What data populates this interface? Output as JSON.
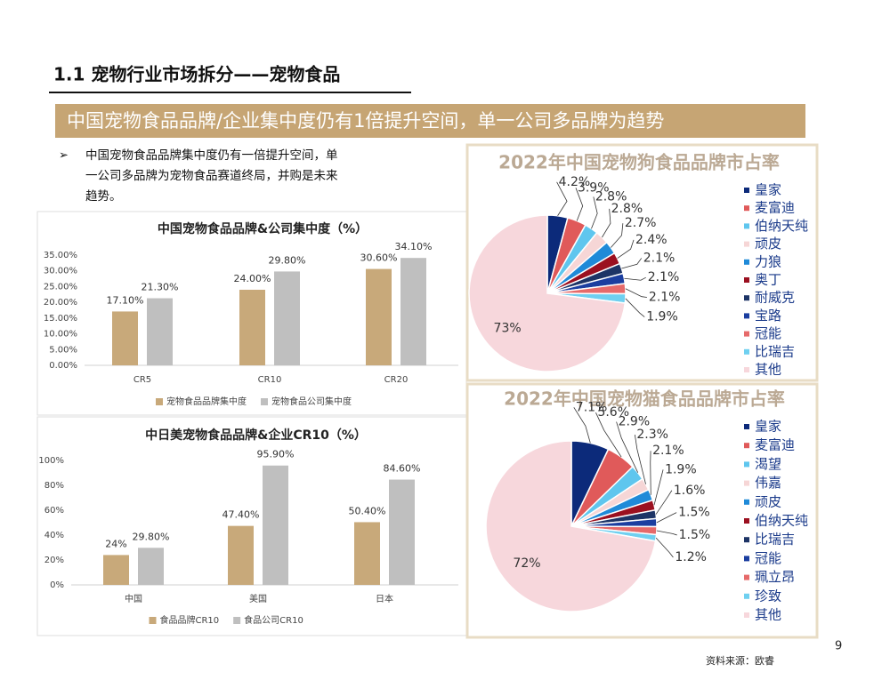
{
  "header": {
    "title": "1.1 宠物行业市场拆分——宠物食品"
  },
  "banner": "中国宠物食品品牌/企业集中度仍有1倍提升空间，单一公司多品牌为趋势",
  "bullet": [
    "中国宠物食品品牌集中度仍有一倍提升空间，单",
    "一公司多品牌为宠物食品赛道终局，并购是未来",
    "趋势。"
  ],
  "chart_data": [
    {
      "type": "bar",
      "title": "中国宠物食品品牌&公司集中度（%）",
      "categories": [
        "CR5",
        "CR10",
        "CR20"
      ],
      "series": [
        {
          "name": "宠物食品品牌集中度",
          "color": "#c8a97a",
          "values": [
            17.1,
            24.0,
            30.6
          ],
          "value_labels": [
            "17.10%",
            "24.00%",
            "30.60%"
          ]
        },
        {
          "name": "宠物食品公司集中度",
          "color": "#bfbfbf",
          "values": [
            21.3,
            29.8,
            34.1
          ],
          "value_labels": [
            "21.30%",
            "29.80%",
            "34.10%"
          ]
        }
      ],
      "ylim": [
        0,
        35
      ],
      "yticks": [
        {
          "value": 0,
          "label": "0.00%"
        },
        {
          "value": 5,
          "label": "5.00%"
        },
        {
          "value": 10,
          "label": "10.00%"
        },
        {
          "value": 15,
          "label": "15.00%"
        },
        {
          "value": 20,
          "label": "20.00%"
        },
        {
          "value": 25,
          "label": "25.00%"
        },
        {
          "value": 30,
          "label": "30.00%"
        },
        {
          "value": 35,
          "label": "35.00%"
        }
      ]
    },
    {
      "type": "bar",
      "title": "中日美宠物食品品牌&企业CR10（%）",
      "categories": [
        "中国",
        "美国",
        "日本"
      ],
      "series": [
        {
          "name": "食品品牌CR10",
          "color": "#c8a97a",
          "values": [
            24,
            47.4,
            50.4
          ],
          "value_labels": [
            "24%",
            "47.40%",
            "50.40%"
          ]
        },
        {
          "name": "食品公司CR10",
          "color": "#bfbfbf",
          "values": [
            29.8,
            95.9,
            84.6
          ],
          "value_labels": [
            "29.80%",
            "95.90%",
            "84.60%"
          ]
        }
      ],
      "ylim": [
        0,
        100
      ],
      "yticks": [
        {
          "value": 0,
          "label": "0%"
        },
        {
          "value": 20,
          "label": "20%"
        },
        {
          "value": 40,
          "label": "40%"
        },
        {
          "value": 60,
          "label": "60%"
        },
        {
          "value": 80,
          "label": "80%"
        },
        {
          "value": 100,
          "label": "100%"
        }
      ]
    },
    {
      "type": "pie",
      "title": "2022年中国宠物狗食品品牌市占率",
      "categories": [
        "皇家",
        "麦富迪",
        "伯纳天纯",
        "顽皮",
        "力狼",
        "奥丁",
        "耐威克",
        "宝路",
        "冠能",
        "比瑞吉",
        "其他"
      ],
      "values": [
        4.2,
        3.9,
        2.8,
        2.8,
        2.7,
        2.4,
        2.1,
        2.1,
        2.1,
        1.9,
        73
      ],
      "value_labels": [
        "4.2%",
        "3.9%",
        "2.8%",
        "2.8%",
        "2.7%",
        "2.4%",
        "2.1%",
        "2.1%",
        "2.1%",
        "1.9%",
        "73%"
      ],
      "colors": [
        "#0c2a7a",
        "#e05a5a",
        "#5fc6ee",
        "#f6d6d6",
        "#1f8ad8",
        "#9b1020",
        "#1d3466",
        "#1b3ea0",
        "#e66a6a",
        "#6fd0f0",
        "#f7d7dc"
      ]
    },
    {
      "type": "pie",
      "title": "2022年中国宠物猫食品品牌市占率",
      "categories": [
        "皇家",
        "麦富迪",
        "渴望",
        "伟嘉",
        "顽皮",
        "伯纳天纯",
        "比瑞吉",
        "冠能",
        "珮立昂",
        "珍致",
        "其他"
      ],
      "values": [
        7.1,
        5.6,
        2.9,
        2.3,
        2.1,
        1.9,
        1.6,
        1.5,
        1.5,
        1.2,
        72
      ],
      "value_labels": [
        "7.1%",
        "5.6%",
        "2.9%",
        "2.3%",
        "2.1%",
        "1.9%",
        "1.6%",
        "1.5%",
        "1.5%",
        "1.2%",
        "72%"
      ],
      "colors": [
        "#0c2a7a",
        "#e05a5a",
        "#5fc6ee",
        "#f6d6d6",
        "#1f8ad8",
        "#9b1020",
        "#1d3466",
        "#1b3ea0",
        "#e66a6a",
        "#6fd0f0",
        "#f7d7dc"
      ]
    }
  ],
  "page_number": "9",
  "source": "资料来源：欧睿"
}
